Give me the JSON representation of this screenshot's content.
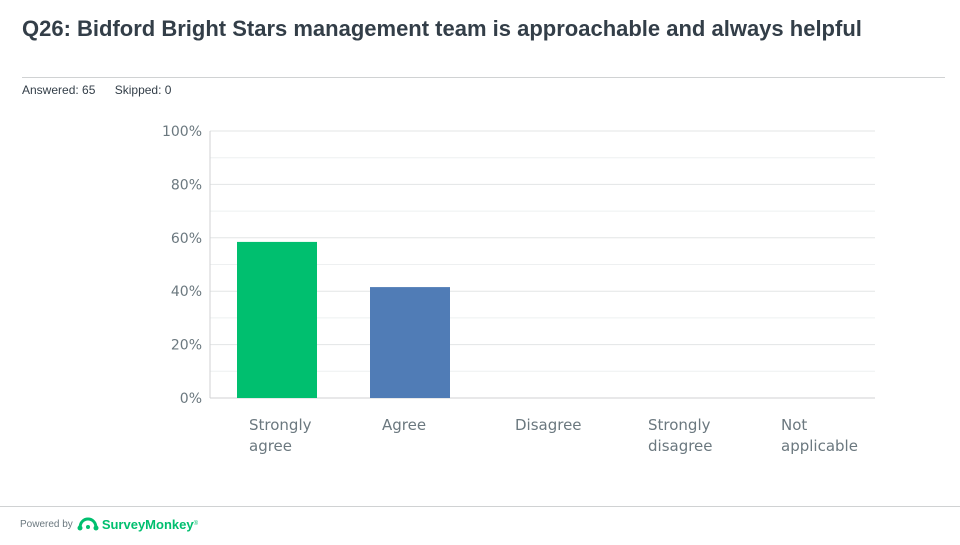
{
  "header": {
    "title": "Q26: Bidford Bright Stars management team is approachable and always helpful",
    "answered_label": "Answered: 65",
    "skipped_label": "Skipped: 0"
  },
  "chart_data": {
    "type": "bar",
    "categories": [
      [
        "Strongly",
        "agree"
      ],
      [
        "Agree"
      ],
      [
        "Disagree"
      ],
      [
        "Strongly",
        "disagree"
      ],
      [
        "Not",
        "applicable"
      ]
    ],
    "values": [
      58.46,
      41.54,
      0,
      0,
      0
    ],
    "bar_colors": [
      "#00bf6f",
      "#507cb6",
      "#00bf6f",
      "#00bf6f",
      "#00bf6f"
    ],
    "ylim": [
      0,
      100
    ],
    "yticks": [
      0,
      20,
      40,
      60,
      80,
      100
    ],
    "ytick_format": "percent",
    "grid": true
  },
  "footer": {
    "powered_by": "Powered by",
    "brand": "SurveyMonkey",
    "brand_mark": "®"
  }
}
